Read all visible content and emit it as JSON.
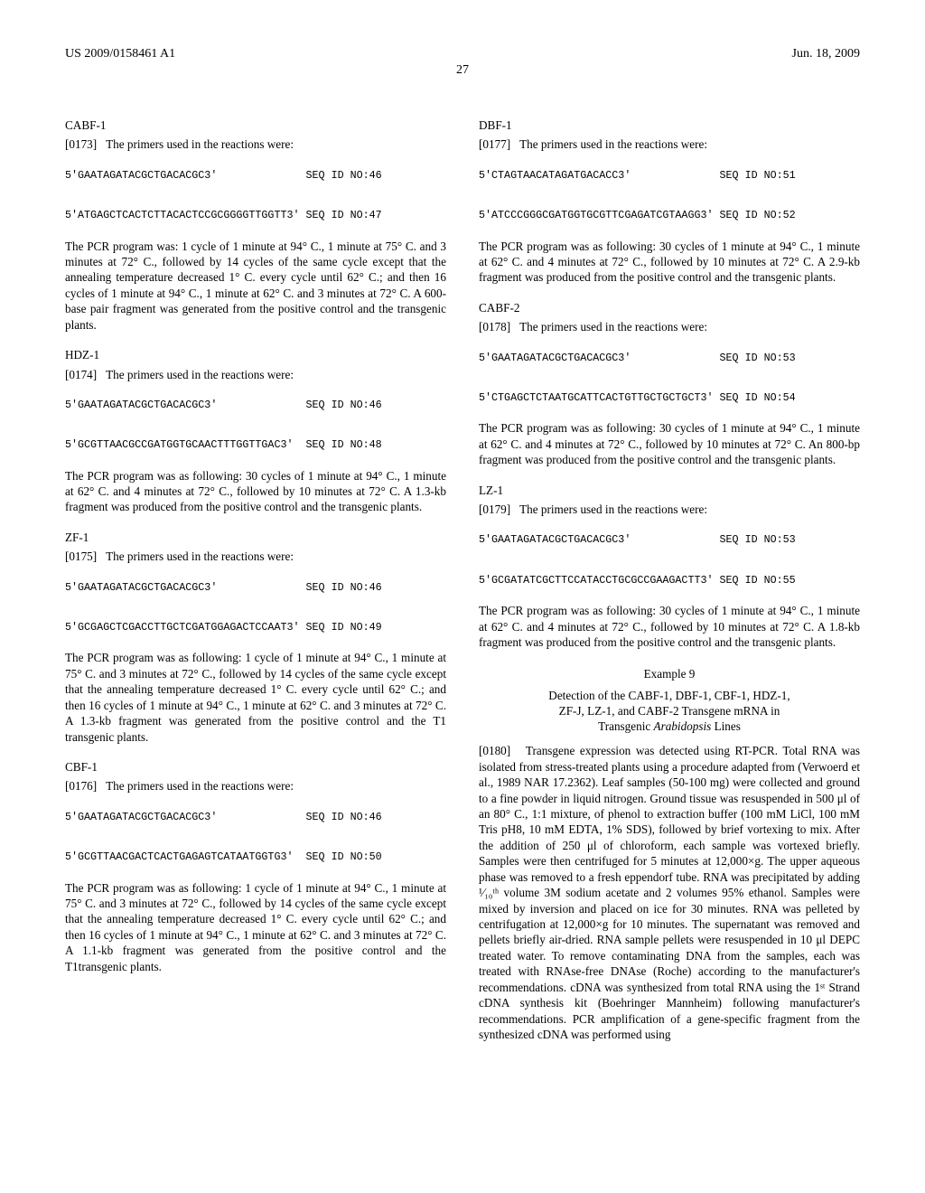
{
  "header": {
    "left": "US 2009/0158461 A1",
    "right": "Jun. 18, 2009"
  },
  "page_number": "27",
  "left_col": {
    "cabf1": {
      "title": "CABF-1",
      "para_num": "[0173]",
      "para_text": "The primers used in the reactions were:",
      "seq1": "5'GAATAGATACGCTGACACGC3'              SEQ ID NO:46",
      "seq2": "5'ATGAGCTCACTCTTACACTCCGCGGGGTTGGTT3' SEQ ID NO:47",
      "body": "The PCR program was: 1 cycle of 1 minute at 94° C., 1 minute at 75° C. and 3 minutes at 72° C., followed by 14 cycles of the same cycle except that the annealing temperature decreased 1° C. every cycle until 62° C.; and then 16 cycles of 1 minute at 94° C., 1 minute at 62° C. and 3 minutes at 72° C. A 600-base pair fragment was generated from the positive control and the transgenic plants."
    },
    "hdz1": {
      "title": "HDZ-1",
      "para_num": "[0174]",
      "para_text": "The primers used in the reactions were:",
      "seq1": "5'GAATAGATACGCTGACACGC3'              SEQ ID NO:46",
      "seq2": "5'GCGTTAACGCCGATGGTGCAACTTTGGTTGAC3'  SEQ ID NO:48",
      "body": "The PCR program was as following: 30 cycles of 1 minute at 94° C., 1 minute at 62° C. and 4 minutes at 72° C., followed by 10 minutes at 72° C. A 1.3-kb fragment was produced from the positive control and the transgenic plants."
    },
    "zf1": {
      "title": "ZF-1",
      "para_num": "[0175]",
      "para_text": "The primers used in the reactions were:",
      "seq1": "5'GAATAGATACGCTGACACGC3'              SEQ ID NO:46",
      "seq2": "5'GCGAGCTCGACCTTGCTCGATGGAGACTCCAAT3' SEQ ID NO:49",
      "body": "The PCR program was as following: 1 cycle of 1 minute at 94° C., 1 minute at 75° C. and 3 minutes at 72° C., followed by 14 cycles of the same cycle except that the annealing temperature decreased 1° C. every cycle until 62° C.; and then 16 cycles of 1 minute at 94° C., 1 minute at 62° C. and 3 minutes at 72° C. A 1.3-kb fragment was generated from the positive control and the T1 transgenic plants."
    },
    "cbf1": {
      "title": "CBF-1",
      "para_num": "[0176]",
      "para_text": "The primers used in the reactions were:",
      "seq1": "5'GAATAGATACGCTGACACGC3'              SEQ ID NO:46",
      "seq2": "5'GCGTTAACGACTCACTGAGAGTCATAATGGTG3'  SEQ ID NO:50",
      "body": "The PCR program was as following: 1 cycle of 1 minute at 94° C., 1 minute at 75° C. and 3 minutes at 72° C., followed by 14 cycles of the same cycle except that the annealing temperature decreased 1° C. every cycle until 62° C.; and then 16 cycles of 1 minute at 94° C., 1 minute at 62° C. and 3 minutes at 72° C. A 1.1-kb fragment was generated from the positive control and the T1transgenic plants."
    }
  },
  "right_col": {
    "dbf1": {
      "title": "DBF-1",
      "para_num": "[0177]",
      "para_text": "The primers used in the reactions were:",
      "seq1": "5'CTAGTAACATAGATGACACC3'              SEQ ID NO:51",
      "seq2": "5'ATCCCGGGCGATGGTGCGTTCGAGATCGTAAGG3' SEQ ID NO:52",
      "body": "The PCR program was as following: 30 cycles of 1 minute at 94° C., 1 minute at 62° C. and 4 minutes at 72° C., followed by 10 minutes at 72° C. A 2.9-kb fragment was produced from the positive control and the transgenic plants."
    },
    "cabf2": {
      "title": "CABF-2",
      "para_num": "[0178]",
      "para_text": "The primers used in the reactions were:",
      "seq1": "5'GAATAGATACGCTGACACGC3'              SEQ ID NO:53",
      "seq2": "5'CTGAGCTCTAATGCATTCACTGTTGCTGCTGCT3' SEQ ID NO:54",
      "body": "The PCR program was as following: 30 cycles of 1 minute at 94° C., 1 minute at 62° C. and 4 minutes at 72° C., followed by 10 minutes at 72° C. An 800-bp fragment was produced from the positive control and the transgenic plants."
    },
    "lz1": {
      "title": "LZ-1",
      "para_num": "[0179]",
      "para_text": "The primers used in the reactions were:",
      "seq1": "5'GAATAGATACGCTGACACGC3'              SEQ ID NO:53",
      "seq2": "5'GCGATATCGCTTCCATACCTGCGCCGAAGACTT3' SEQ ID NO:55",
      "body": "The PCR program was as following: 30 cycles of 1 minute at 94° C., 1 minute at 62° C. and 4 minutes at 72° C., followed by 10 minutes at 72° C. A 1.8-kb fragment was produced from the positive control and the transgenic plants."
    },
    "example9": {
      "title": "Example 9",
      "subtitle_line1": "Detection of the CABF-1, DBF-1, CBF-1, HDZ-1,",
      "subtitle_line2": "ZF-J, LZ-1, and CABF-2 Transgene mRNA in",
      "subtitle_line3_pre": "Transgenic ",
      "subtitle_line3_it": "Arabidopsis",
      "subtitle_line3_post": " Lines",
      "para_num": "[0180]",
      "body": "Transgene expression was detected using RT-PCR. Total RNA was isolated from stress-treated plants using a procedure adapted from (Verwoerd et al., 1989 NAR 17.2362). Leaf samples (50-100 mg) were collected and ground to a fine powder in liquid nitrogen. Ground tissue was resuspended in 500 μl of an 80° C., 1:1 mixture, of phenol to extraction buffer (100 mM LiCl, 100 mM Tris pH8, 10 mM EDTA, 1% SDS), followed by brief vortexing to mix. After the addition of 250 μl of chloroform, each sample was vortexed briefly. Samples were then centrifuged for 5 minutes at 12,000×g. The upper aqueous phase was removed to a fresh eppendorf tube. RNA was precipitated by adding ¹⁄₁₀ᵗʰ volume 3M sodium acetate and 2 volumes 95% ethanol. Samples were mixed by inversion and placed on ice for 30 minutes. RNA was pelleted by centrifugation at 12,000×g for 10 minutes. The supernatant was removed and pellets briefly air-dried. RNA sample pellets were resuspended in 10 μl DEPC treated water. To remove contaminating DNA from the samples, each was treated with RNAse-free DNAse (Roche) according to the manufacturer's recommendations. cDNA was synthesized from total RNA using the 1ˢᵗ Strand cDNA synthesis kit (Boehringer Mannheim) following manufacturer's recommendations. PCR amplification of a gene-specific fragment from the synthesized cDNA was performed using"
    }
  }
}
